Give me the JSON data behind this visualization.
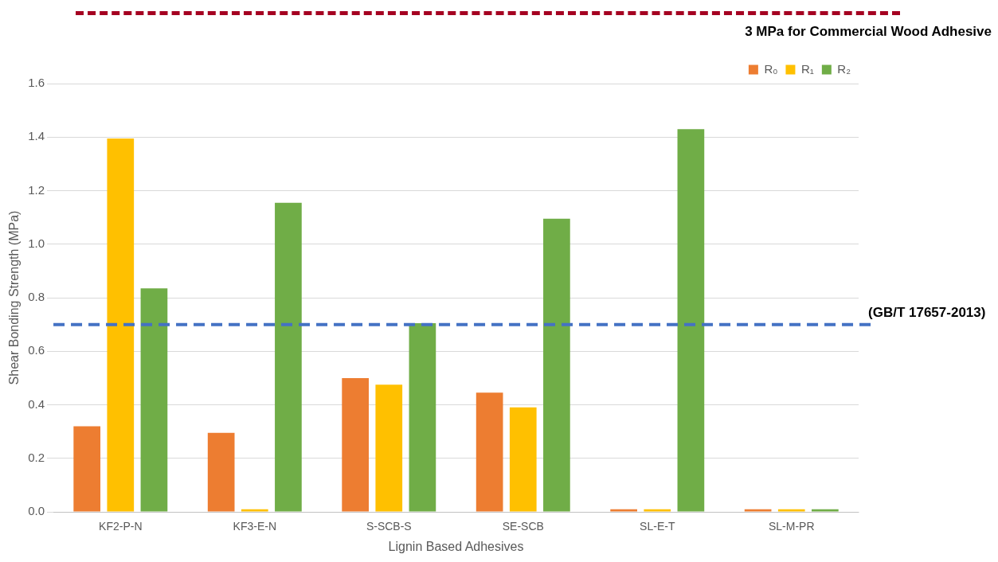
{
  "chart_data": {
    "type": "bar",
    "xlabel": "Lignin Based Adhesives",
    "ylabel": "Shear Bonding Strength (MPa)",
    "categories": [
      "KF2-P-N",
      "KF3-E-N",
      "S-SCB-S",
      "SE-SCB",
      "SL-E-T",
      "SL-M-PR"
    ],
    "series": [
      {
        "name": "R₀",
        "color": "#ed7d31",
        "values": [
          0.32,
          0.295,
          0.5,
          0.445,
          0.01,
          0.01
        ]
      },
      {
        "name": "R₁",
        "color": "#ffc000",
        "values": [
          1.395,
          0.01,
          0.475,
          0.39,
          0.01,
          0.01
        ]
      },
      {
        "name": "R₂",
        "color": "#70ad47",
        "values": [
          0.835,
          1.155,
          0.705,
          1.095,
          1.43,
          0.01
        ]
      }
    ],
    "ylim": [
      0,
      1.6
    ],
    "yticks": [
      {
        "value": 0,
        "label": "0.0"
      },
      {
        "value": 0.2,
        "label": "0.2"
      },
      {
        "value": 0.4,
        "label": "0.4"
      },
      {
        "value": 0.6,
        "label": "0.6"
      },
      {
        "value": 0.8,
        "label": "0.8"
      },
      {
        "value": 1,
        "label": "1.0"
      },
      {
        "value": 1.2,
        "label": "1.2"
      },
      {
        "value": 1.4,
        "label": "1.4"
      },
      {
        "value": 1.6,
        "label": "1.6"
      }
    ],
    "grid": "y",
    "legend": "top right",
    "ref_lines": [
      {
        "axis": "y",
        "value": 0.7,
        "label": "(GB/T 17657-2013)",
        "color": "#4472c4",
        "line_style": "dashed"
      }
    ],
    "annotations": [
      "3 MPa for Commercial Wood Adhesive"
    ]
  }
}
